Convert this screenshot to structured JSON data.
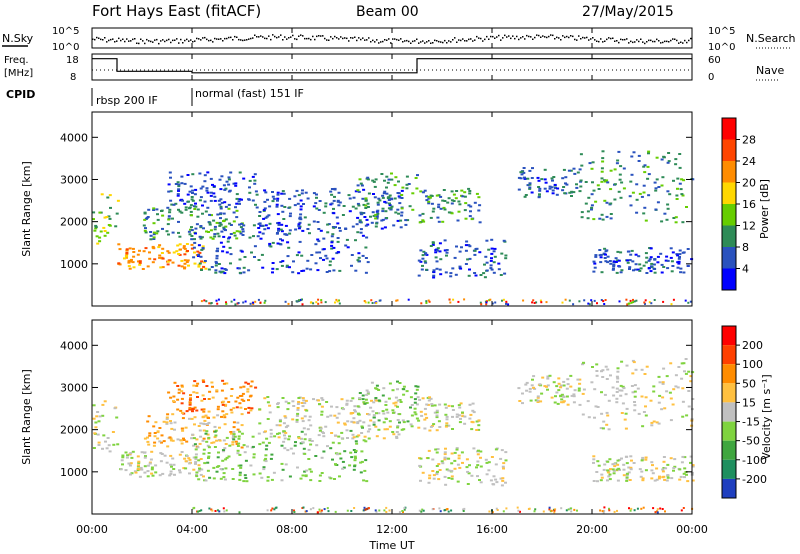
{
  "header": {
    "station": "Fort Hays East (fitACF)",
    "beam": "Beam 00",
    "date": "27/May/2015"
  },
  "top_panels": {
    "nsky_label": "N.Sky",
    "nsearch_label": "N.Search",
    "noise_ticks": [
      "10^5",
      "10^0"
    ],
    "freq_label_1": "Freq.",
    "freq_label_2": "[MHz]",
    "freq_ticks": [
      "18",
      "8"
    ],
    "nave_label": "Nave",
    "nave_ticks": [
      "60",
      "0"
    ],
    "cpid_label": "CPID",
    "cpid_segments": [
      {
        "label": "rbsp 200 IF",
        "start": 0.0,
        "end": 4.0
      },
      {
        "label": "normal (fast) 151 IF",
        "start": 4.0,
        "end": 24.0
      }
    ],
    "freq_series": [
      {
        "t0": 0.0,
        "t1": 1.0,
        "mhz": 17.6
      },
      {
        "t0": 1.0,
        "t1": 4.0,
        "mhz": 10.6
      },
      {
        "t0": 4.0,
        "t1": 13.0,
        "mhz": 9.8
      },
      {
        "t0": 13.0,
        "t1": 24.0,
        "mhz": 17.6
      }
    ]
  },
  "chart_data": [
    {
      "type": "heatmap",
      "name": "power-panel",
      "ylabel": "Slant Range [km]",
      "xlabel": "Time UT",
      "xlim": [
        0,
        24
      ],
      "ylim": [
        0,
        4600
      ],
      "yticks": [
        1000,
        2000,
        3000,
        4000
      ],
      "xticks": [
        "00:00",
        "04:00",
        "08:00",
        "12:00",
        "16:00",
        "20:00",
        "00:00"
      ],
      "colorbar": {
        "label": "Power [dB]",
        "ticks": [
          "4",
          "8",
          "12",
          "16",
          "20",
          "24",
          "28"
        ],
        "colors": [
          "#0000ff",
          "#2a52be",
          "#2e8b57",
          "#66cd00",
          "#ffd700",
          "#ff8c00",
          "#ff4500",
          "#ff0000"
        ]
      },
      "regions": [
        {
          "t0": 0.0,
          "t1": 1.0,
          "r0": 1500,
          "r1": 2700,
          "level": 3
        },
        {
          "t0": 1.0,
          "t1": 4.5,
          "r0": 900,
          "r1": 1500,
          "level": 5
        },
        {
          "t0": 2.0,
          "t1": 6.0,
          "r0": 1600,
          "r1": 2400,
          "level": 2
        },
        {
          "t0": 3.0,
          "t1": 6.5,
          "r0": 2400,
          "r1": 3200,
          "level": 1
        },
        {
          "t0": 4.0,
          "t1": 11.0,
          "r0": 800,
          "r1": 2000,
          "level": 1
        },
        {
          "t0": 6.5,
          "t1": 12.5,
          "r0": 1800,
          "r1": 2800,
          "level": 1
        },
        {
          "t0": 10.5,
          "t1": 13.0,
          "r0": 2000,
          "r1": 3200,
          "level": 2
        },
        {
          "t0": 13.0,
          "t1": 15.5,
          "r0": 2000,
          "r1": 2800,
          "level": 2
        },
        {
          "t0": 13.0,
          "t1": 16.5,
          "r0": 700,
          "r1": 1600,
          "level": 1
        },
        {
          "t0": 17.0,
          "t1": 19.5,
          "r0": 2600,
          "r1": 3300,
          "level": 1
        },
        {
          "t0": 19.5,
          "t1": 24.0,
          "r0": 2000,
          "r1": 3700,
          "level": 2
        },
        {
          "t0": 20.0,
          "t1": 24.0,
          "r0": 800,
          "r1": 1400,
          "level": 1
        }
      ]
    },
    {
      "type": "heatmap",
      "name": "velocity-panel",
      "ylabel": "Slant Range [km]",
      "xlabel": "Time UT",
      "xlim": [
        0,
        24
      ],
      "ylim": [
        0,
        4600
      ],
      "yticks": [
        1000,
        2000,
        3000,
        4000
      ],
      "xticks": [
        "00:00",
        "04:00",
        "08:00",
        "12:00",
        "16:00",
        "20:00",
        "00:00"
      ],
      "colorbar": {
        "label": "Velocity [m s⁻¹]",
        "ticks": [
          "200",
          "100",
          "50",
          "15",
          "-15",
          "-50",
          "-100",
          "-200"
        ],
        "colors": [
          "#1f3fbf",
          "#1f8f5f",
          "#3fa63f",
          "#7fd33f",
          "#c0c0c0",
          "#ffc040",
          "#ff8c00",
          "#ff4000",
          "#ff0000"
        ]
      },
      "regions": [
        {
          "t0": 0.0,
          "t1": 1.0,
          "r0": 1500,
          "r1": 2700,
          "level": 4
        },
        {
          "t0": 1.0,
          "t1": 4.5,
          "r0": 900,
          "r1": 1500,
          "level": 4
        },
        {
          "t0": 2.0,
          "t1": 6.0,
          "r0": 1600,
          "r1": 2400,
          "level": 5
        },
        {
          "t0": 3.0,
          "t1": 6.5,
          "r0": 2400,
          "r1": 3200,
          "level": 6
        },
        {
          "t0": 4.0,
          "t1": 11.0,
          "r0": 800,
          "r1": 2000,
          "level": 3
        },
        {
          "t0": 6.5,
          "t1": 12.5,
          "r0": 1800,
          "r1": 2800,
          "level": 4
        },
        {
          "t0": 10.5,
          "t1": 13.0,
          "r0": 2000,
          "r1": 3200,
          "level": 3
        },
        {
          "t0": 13.0,
          "t1": 15.5,
          "r0": 2000,
          "r1": 2800,
          "level": 4
        },
        {
          "t0": 13.0,
          "t1": 16.5,
          "r0": 700,
          "r1": 1600,
          "level": 4
        },
        {
          "t0": 17.0,
          "t1": 19.5,
          "r0": 2600,
          "r1": 3300,
          "level": 4
        },
        {
          "t0": 19.5,
          "t1": 24.0,
          "r0": 2000,
          "r1": 3700,
          "level": 4
        },
        {
          "t0": 20.0,
          "t1": 24.0,
          "r0": 800,
          "r1": 1400,
          "level": 4
        }
      ]
    }
  ]
}
